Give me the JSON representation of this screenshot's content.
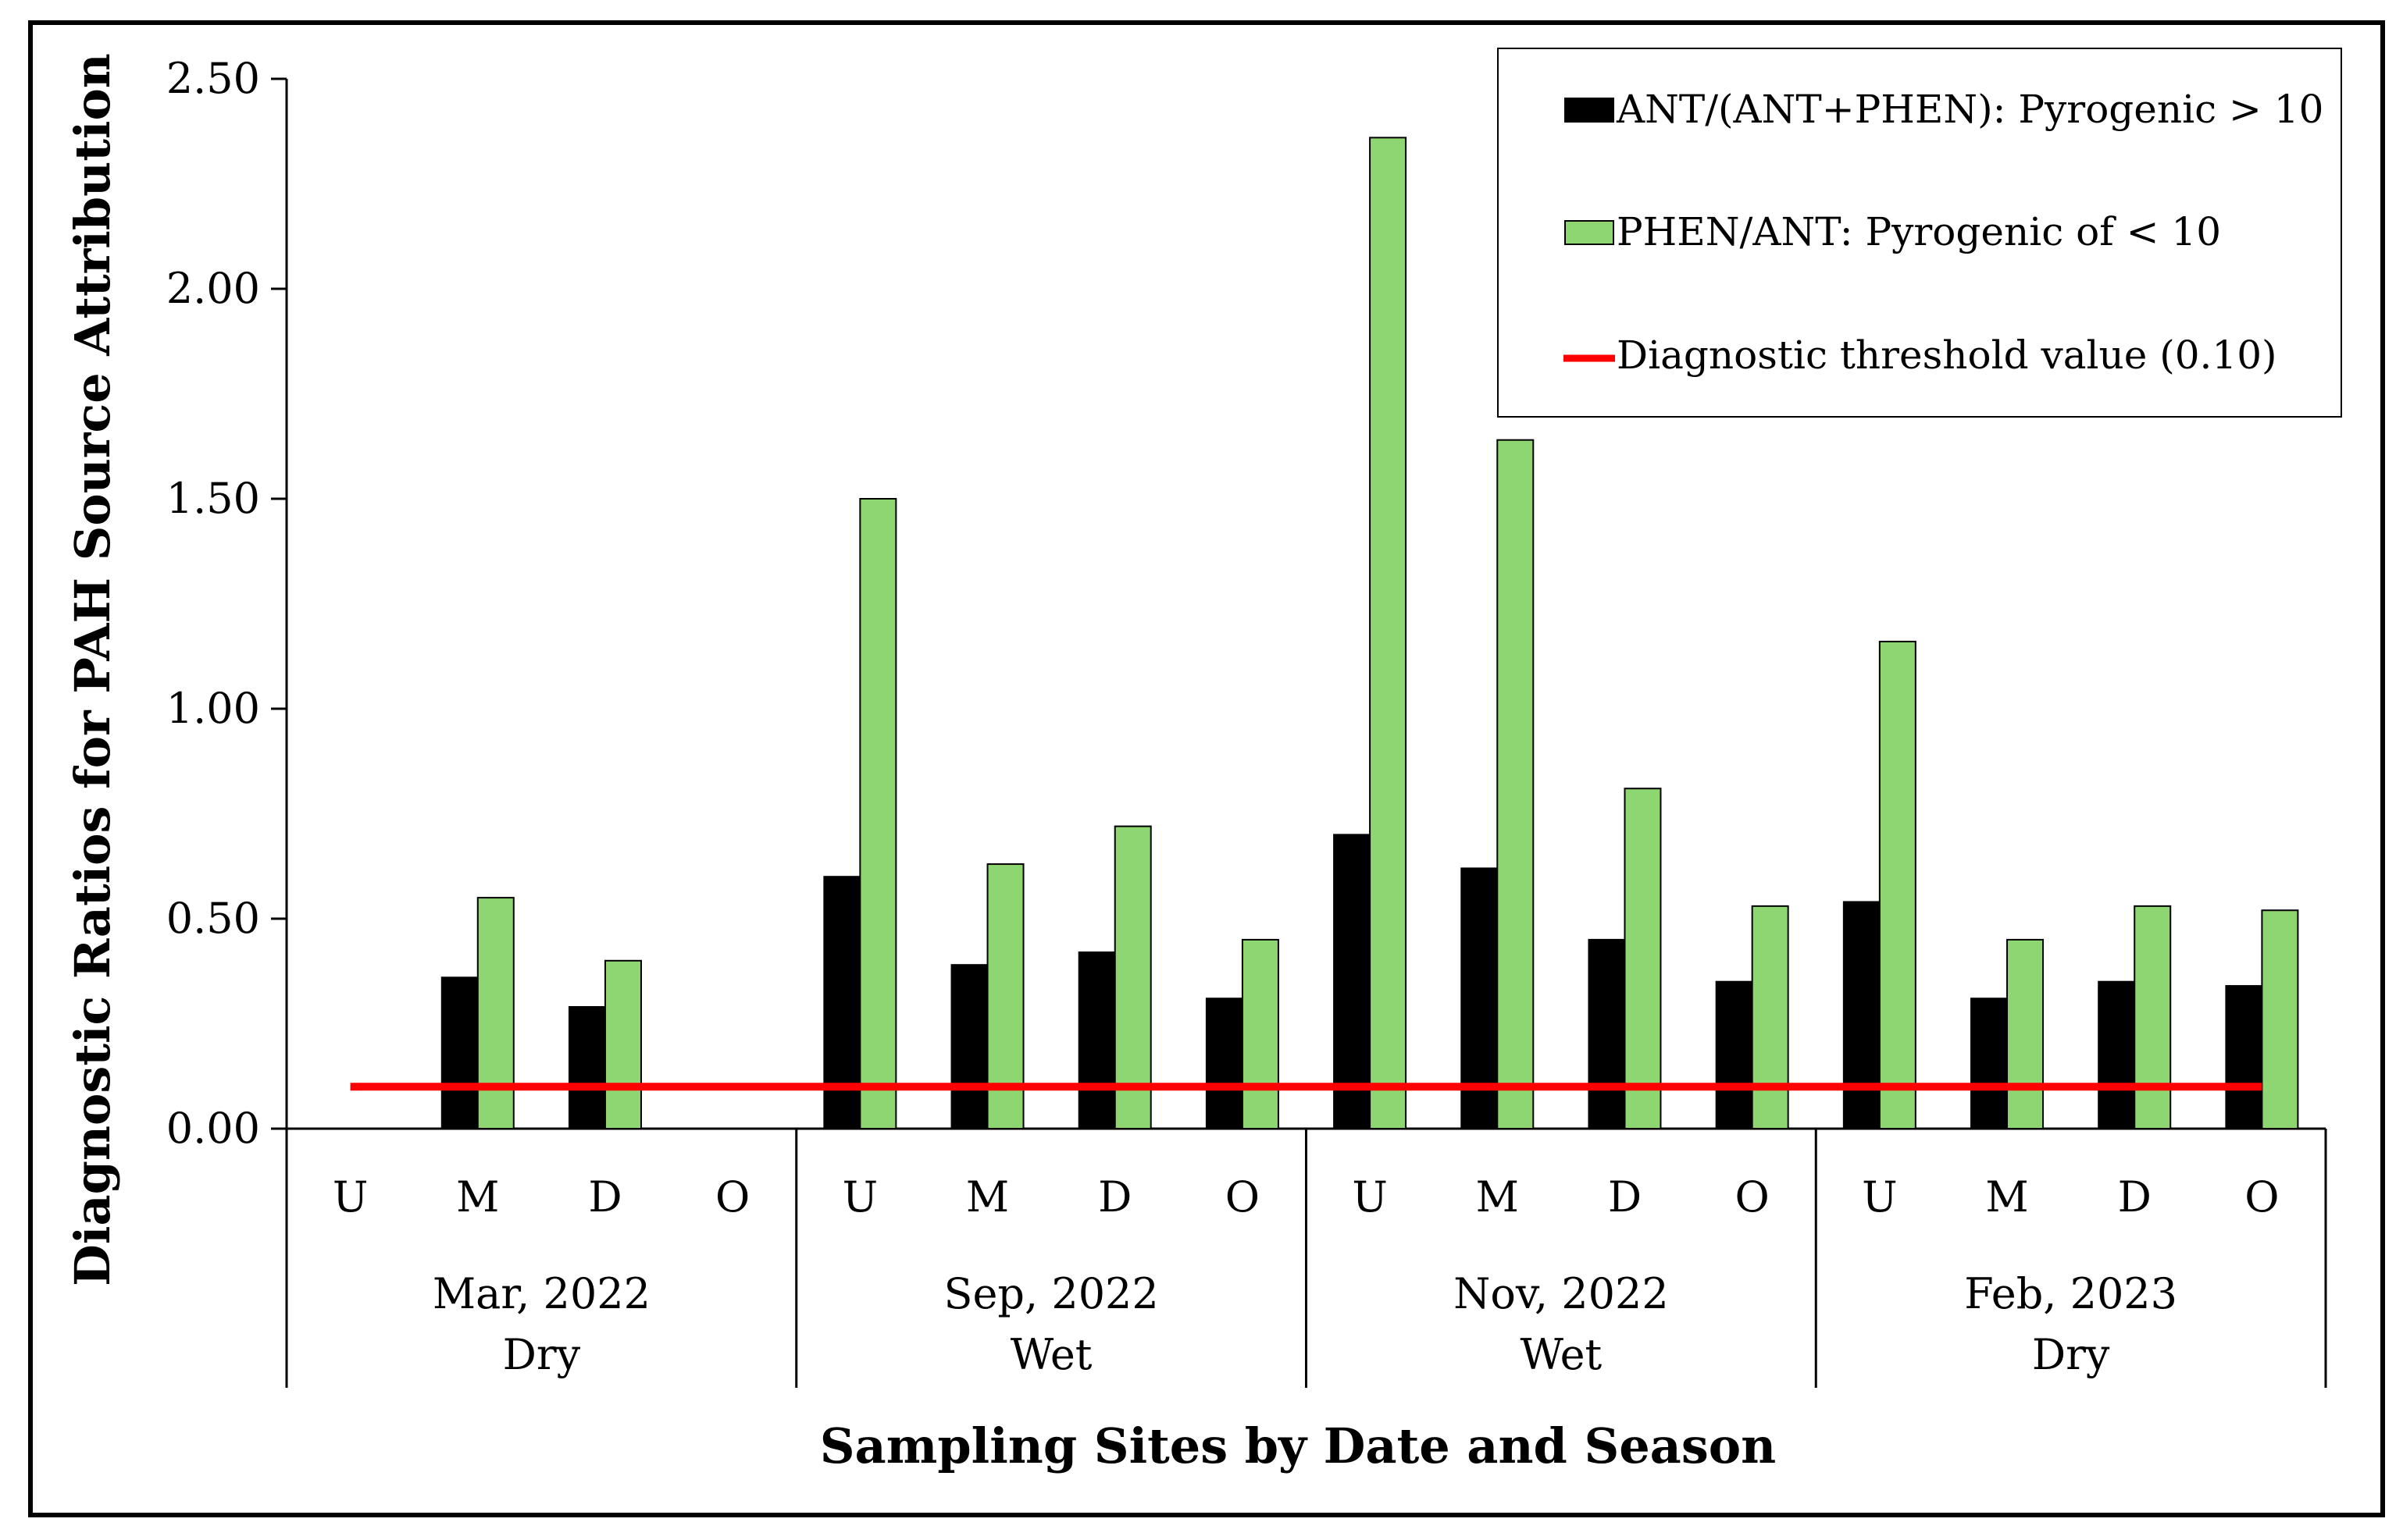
{
  "chart_data": {
    "type": "bar",
    "title": "",
    "xlabel": "Sampling Sites by Date and Season",
    "ylabel": "Diagnostic Ratios for PAH Source Attribution",
    "ylim": [
      0,
      2.5
    ],
    "yticks": [
      "0.00",
      "0.50",
      "1.00",
      "1.50",
      "2.00",
      "2.50"
    ],
    "groups": [
      {
        "date": "Mar, 2022",
        "season": "Dry"
      },
      {
        "date": "Sep, 2022",
        "season": "Wet"
      },
      {
        "date": "Nov, 2022",
        "season": "Wet"
      },
      {
        "date": "Feb, 2023",
        "season": "Dry"
      }
    ],
    "sites": [
      "U",
      "M",
      "D",
      "O"
    ],
    "series": [
      {
        "name": "ANT/(ANT+PHEN): Pyrogenic > 10",
        "color": "#000000",
        "values": [
          null,
          0.36,
          0.29,
          null,
          0.6,
          0.39,
          0.42,
          0.31,
          0.7,
          0.62,
          0.45,
          0.35,
          0.54,
          0.31,
          0.35,
          0.34
        ]
      },
      {
        "name": "PHEN/ANT: Pyrogenic of < 10",
        "color": "#8ed672",
        "values": [
          null,
          0.55,
          0.4,
          null,
          1.5,
          0.63,
          0.72,
          0.45,
          2.36,
          1.64,
          0.81,
          0.53,
          1.16,
          0.45,
          0.53,
          0.52
        ]
      }
    ],
    "threshold": {
      "name": "Diagnostic threshold value (0.10)",
      "value": 0.1,
      "color": "#ff0000"
    },
    "legend_position": "top-right",
    "grid": false
  }
}
